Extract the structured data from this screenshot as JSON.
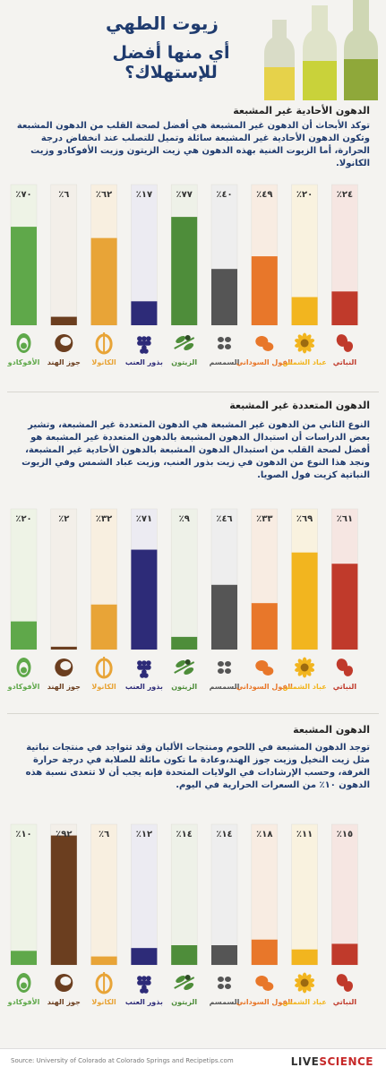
{
  "header": {
    "title": "زيوت الطهي",
    "subtitle": "أي منها أفضل للإستهلاك؟"
  },
  "sections": [
    {
      "title": "الدهون الأحادية غير المشبعة",
      "text": "توكد الأبحاث أن الدهون غير المشبعة هي أفضل لصحة القلب من الدهون المشبعة وتكون الدهون الأحادية غير المشبعة سائلة وتميل للتصلب عند انخفاض درجة الحرارة، أما الزيوت الغنية بهذه الدهون هي زيت الزيتون وزيت الأفوكادو وزيت الكانولا."
    },
    {
      "title": "الدهون المتعددة غير المشبعة",
      "text": "النوع الثاني من الدهون غير المشبعة هي الدهون المتعددة غير المشبعة، وتشير بعض الدراسات أن استبدال الدهون المشبعة بالدهون المتعددة غير المشبعة هو أفضل لصحة القلب من استبدال الدهون المشبعة بالدهون الأحادية غير المشبعة، ونجد هذا النوع من الدهون في زيت بذور العنب، وزيت عباد الشمس وفي الزيوت النباتية كزيت فول الصويا."
    },
    {
      "title": "الدهون المشبعة",
      "text": "توجد الدهون المشبعة في اللحوم ومنتجات الألبان وقد تتواجد في منتجات نباتية مثل زيت النخيل وزيت جوز الهند،وعادة ما تكون مائلة للصلابة في درجة حرارة الغرفة، وحسب الإرشادات في الولايات المتحدة فإنه يجب أن لا تتعدى نسبة هذه الدهون ١٠٪ من السعرات الحرارية في اليوم."
    }
  ],
  "chart_data": [
    {
      "type": "bar",
      "categories": [
        "الأفوكادو",
        "جوز الهند",
        "الكانولا",
        "بذور العنب",
        "الزيتون",
        "السمسم",
        "الفول السوداني",
        "عباد الشمس",
        "النباتي"
      ],
      "values": [
        70,
        6,
        62,
        17,
        77,
        40,
        49,
        20,
        24
      ],
      "value_labels": [
        "٧٠٪",
        "٦٪",
        "٦٢٪",
        "١٧٪",
        "٧٧٪",
        "٤٠٪",
        "٤٩٪",
        "٢٠٪",
        "٢٤٪"
      ],
      "ylim": [
        0,
        100
      ]
    },
    {
      "type": "bar",
      "categories": [
        "الأفوكادو",
        "جوز الهند",
        "الكانولا",
        "بذور العنب",
        "الزيتون",
        "السمسم",
        "الفول السوداني",
        "عباد الشمس",
        "النباتي"
      ],
      "values": [
        20,
        2,
        32,
        71,
        9,
        46,
        33,
        69,
        61
      ],
      "value_labels": [
        "٢٠٪",
        "٢٪",
        "٣٢٪",
        "٧١٪",
        "٩٪",
        "٤٦٪",
        "٣٣٪",
        "٦٩٪",
        "٦١٪"
      ],
      "ylim": [
        0,
        100
      ]
    },
    {
      "type": "bar",
      "categories": [
        "الأفوكادو",
        "جوز الهند",
        "الكانولا",
        "بذور العنب",
        "الزيتون",
        "السمسم",
        "الفول السوداني",
        "عباد الشمس",
        "النباتي"
      ],
      "values": [
        10,
        92,
        6,
        12,
        14,
        14,
        18,
        11,
        15
      ],
      "value_labels": [
        "١٠٪",
        "٩٢٪",
        "٦٪",
        "١٢٪",
        "١٤٪",
        "١٤٪",
        "١٨٪",
        "١١٪",
        "١٥٪"
      ],
      "ylim": [
        0,
        100
      ]
    }
  ],
  "colors": [
    "#5fa84a",
    "#6b3e1f",
    "#e8a437",
    "#2d2b78",
    "#4e8d3a",
    "#555555",
    "#e8772a",
    "#f2b51f",
    "#c03a2b"
  ],
  "light_colors": [
    "#eef3e6",
    "#f3efe9",
    "#f8efe0",
    "#ecebf2",
    "#eef1e8",
    "#eeeeee",
    "#f8ece2",
    "#f9f2df",
    "#f6e6e2"
  ],
  "icons": [
    "avocado-icon",
    "coconut-icon",
    "canola-icon",
    "grape-icon",
    "olive-icon",
    "sesame-icon",
    "peanut-icon",
    "sunflower-icon",
    "bean-icon"
  ],
  "footer": {
    "source": "Source: University of Colorado at Colorado Springs and Recipetips.com",
    "brand_a": "LIVE",
    "brand_b": "SCIENCE"
  }
}
